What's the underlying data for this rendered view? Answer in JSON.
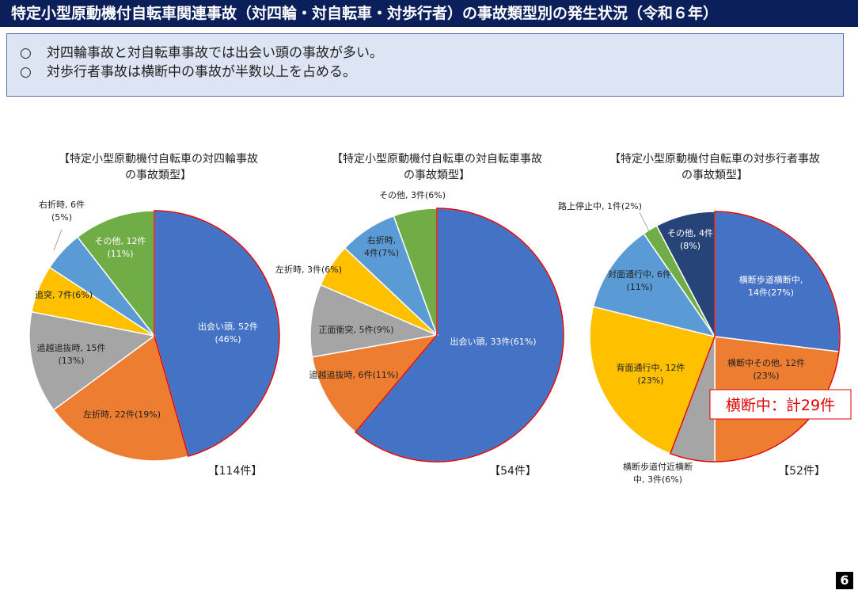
{
  "header": {
    "title": "特定小型原動機付自転車関連事故（対四輪・対自転車・対歩行者）の事故類型別の発生状況（令和６年）"
  },
  "summary": [
    {
      "mark": "○",
      "text": "対四輪事故と対自転車事故では出会い頭の事故が多い。"
    },
    {
      "mark": "○",
      "text": "対歩行者事故は横断中の事故が半数以上を占める。"
    }
  ],
  "page_number": "6",
  "chart_data": [
    {
      "type": "pie",
      "title": [
        "【特定小型原動機付自転車の対四輪事故",
        "の事故類型】"
      ],
      "total_label": "【114件】",
      "slices": [
        {
          "name": "出会い頭",
          "value": 52,
          "label": [
            "出会い頭, 52件",
            "(46%)"
          ],
          "color": "#4472c4",
          "label_color": "#ffffff"
        },
        {
          "name": "左折時",
          "value": 22,
          "label": [
            "左折時, 22件(19%)"
          ],
          "color": "#ed7d31",
          "label_color": "#222222"
        },
        {
          "name": "追越追抜時",
          "value": 15,
          "label": [
            "追越追抜時, 15件",
            "(13%)"
          ],
          "color": "#a5a5a5",
          "label_color": "#222222"
        },
        {
          "name": "追突",
          "value": 7,
          "label": [
            "追突, 7件(6%)"
          ],
          "color": "#ffc000",
          "label_color": "#222222"
        },
        {
          "name": "右折時",
          "value": 6,
          "label": [
            "右折時, 6件",
            "(5%)"
          ],
          "color": "#5b9bd5",
          "label_color": "#222222"
        },
        {
          "name": "その他",
          "value": 12,
          "label": [
            "その他, 12件",
            "(11%)"
          ],
          "color": "#70ad47",
          "label_color": "#ffffff"
        }
      ]
    },
    {
      "type": "pie",
      "title": [
        "【特定小型原動機付自転車の対自転車事故",
        "の事故類型】"
      ],
      "total_label": "【54件】",
      "slices": [
        {
          "name": "出会い頭",
          "value": 33,
          "label": [
            "出会い頭, 33件(61%)"
          ],
          "color": "#4472c4",
          "label_color": "#ffffff"
        },
        {
          "name": "追越追抜時",
          "value": 6,
          "label": [
            "追越追抜時, 6件(11%)"
          ],
          "color": "#ed7d31",
          "label_color": "#222222"
        },
        {
          "name": "正面衝突",
          "value": 5,
          "label": [
            "正面衝突, 5件(9%)"
          ],
          "color": "#a5a5a5",
          "label_color": "#222222"
        },
        {
          "name": "左折時",
          "value": 3,
          "label": [
            "左折時, 3件(6%)"
          ],
          "color": "#ffc000",
          "label_color": "#222222"
        },
        {
          "name": "右折時",
          "value": 4,
          "label": [
            "右折時,",
            "4件(7%)"
          ],
          "color": "#5b9bd5",
          "label_color": "#222222"
        },
        {
          "name": "その他",
          "value": 3,
          "label": [
            "その他, 3件(6%)"
          ],
          "color": "#70ad47",
          "label_color": "#222222"
        }
      ]
    },
    {
      "type": "pie",
      "title": [
        "【特定小型原動機付自転車の対歩行者事故",
        "の事故類型】"
      ],
      "total_label": "【52件】",
      "callout": "横断中：計29件",
      "slices": [
        {
          "name": "横断歩道横断中",
          "value": 14,
          "label": [
            "横断歩道横断中,",
            "14件(27%)"
          ],
          "color": "#4472c4",
          "label_color": "#ffffff"
        },
        {
          "name": "横断中その他",
          "value": 12,
          "label": [
            "横断中その他, 12件",
            "(23%)"
          ],
          "color": "#ed7d31",
          "label_color": "#222222"
        },
        {
          "name": "横断歩道付近横断中",
          "value": 3,
          "label": [
            "横断歩道付近横断",
            "中, 3件(6%)"
          ],
          "color": "#a5a5a5",
          "label_color": "#222222"
        },
        {
          "name": "背面通行中",
          "value": 12,
          "label": [
            "背面通行中, 12件",
            "(23%)"
          ],
          "color": "#ffc000",
          "label_color": "#222222"
        },
        {
          "name": "対面通行中",
          "value": 6,
          "label": [
            "対面通行中, 6件",
            "(11%)"
          ],
          "color": "#5b9bd5",
          "label_color": "#222222"
        },
        {
          "name": "路上停止中",
          "value": 1,
          "label": [
            "路上停止中, 1件(2%)"
          ],
          "color": "#70ad47",
          "label_color": "#222222"
        },
        {
          "name": "その他",
          "value": 4,
          "label": [
            "その他, 4件",
            "(8%)"
          ],
          "color": "#264478",
          "label_color": "#ffffff"
        }
      ]
    }
  ]
}
